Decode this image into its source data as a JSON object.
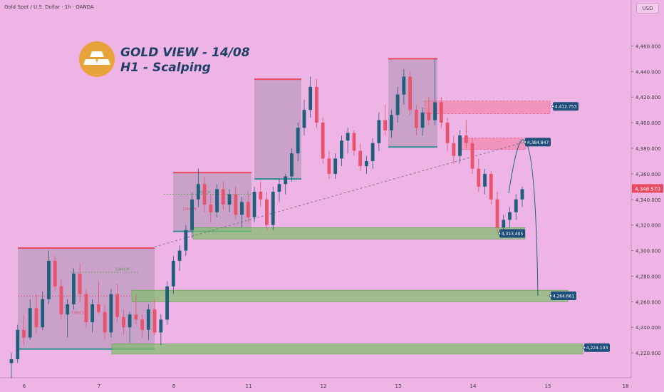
{
  "header": {
    "symbol": "Gold Spot / U.S. Dollar · 1h · OANDA",
    "currency": "USD"
  },
  "overlay": {
    "title": "GOLD VIEW - 14/08",
    "subtitle": "H1 - Scalping",
    "logo_icon": "gold-bars-icon"
  },
  "chart_data": {
    "type": "candlestick",
    "instrument": "Gold Spot / U.S. Dollar",
    "timeframe": "1h",
    "source": "OANDA",
    "ylim": [
      4205,
      4482
    ],
    "y_ticks": [
      "4,460.000",
      "4,440.000",
      "4,420.000",
      "4,400.000",
      "4,380.000",
      "4,360.000",
      "4,340.000",
      "4,320.000",
      "4,300.000",
      "4,280.000",
      "4,260.000",
      "4,240.000",
      "4,220.000"
    ],
    "x_ticks": [
      "6",
      "7",
      "8",
      "11",
      "12",
      "13",
      "14",
      "15",
      "18"
    ],
    "current_price": "4,348.570",
    "price_labels": [
      {
        "value": 4412.753,
        "text": "4,412.753"
      },
      {
        "value": 4384.847,
        "text": "4,384.847"
      },
      {
        "value": 4313.405,
        "text": "4,313.405"
      },
      {
        "value": 4264.661,
        "text": "4,264.661"
      },
      {
        "value": 4224.103,
        "text": "4,224.103"
      }
    ],
    "annotations": [
      "CHoCH",
      "CHoCH",
      "CHoCH",
      "CHoCH"
    ],
    "zones": [
      {
        "kind": "supply",
        "from": 4407,
        "to": 4417
      },
      {
        "kind": "supply",
        "from": 4379,
        "to": 4388
      },
      {
        "kind": "demand",
        "from": 4309,
        "to": 4318
      },
      {
        "kind": "demand",
        "from": 4260,
        "to": 4269
      },
      {
        "kind": "demand",
        "from": 4219,
        "to": 4227
      }
    ],
    "ranges": [
      {
        "high": 4302,
        "low": 4223
      },
      {
        "high": 4361,
        "low": 4315
      },
      {
        "high": 4434,
        "low": 4356
      },
      {
        "high": 4450,
        "low": 4381
      }
    ],
    "candles": [
      [
        4212,
        4220,
        4200,
        4215
      ],
      [
        4215,
        4242,
        4212,
        4238
      ],
      [
        4238,
        4250,
        4226,
        4232
      ],
      [
        4232,
        4262,
        4230,
        4255
      ],
      [
        4255,
        4266,
        4235,
        4240
      ],
      [
        4240,
        4268,
        4238,
        4262
      ],
      [
        4262,
        4300,
        4258,
        4292
      ],
      [
        4292,
        4296,
        4268,
        4272
      ],
      [
        4272,
        4278,
        4246,
        4250
      ],
      [
        4250,
        4262,
        4232,
        4258
      ],
      [
        4258,
        4286,
        4254,
        4282
      ],
      [
        4282,
        4290,
        4260,
        4266
      ],
      [
        4266,
        4270,
        4240,
        4244
      ],
      [
        4244,
        4262,
        4236,
        4258
      ],
      [
        4258,
        4276,
        4250,
        4252
      ],
      [
        4252,
        4258,
        4230,
        4236
      ],
      [
        4236,
        4270,
        4232,
        4266
      ],
      [
        4266,
        4274,
        4244,
        4248
      ],
      [
        4248,
        4254,
        4234,
        4240
      ],
      [
        4240,
        4252,
        4228,
        4250
      ],
      [
        4250,
        4266,
        4242,
        4246
      ],
      [
        4246,
        4250,
        4232,
        4238
      ],
      [
        4238,
        4258,
        4230,
        4254
      ],
      [
        4254,
        4262,
        4234,
        4236
      ],
      [
        4236,
        4250,
        4226,
        4246
      ],
      [
        4246,
        4276,
        4242,
        4272
      ],
      [
        4272,
        4296,
        4266,
        4292
      ],
      [
        4292,
        4304,
        4284,
        4300
      ],
      [
        4300,
        4320,
        4296,
        4316
      ],
      [
        4316,
        4346,
        4310,
        4340
      ],
      [
        4340,
        4364,
        4334,
        4352
      ],
      [
        4352,
        4358,
        4330,
        4336
      ],
      [
        4336,
        4344,
        4322,
        4330
      ],
      [
        4330,
        4352,
        4326,
        4348
      ],
      [
        4348,
        4354,
        4332,
        4336
      ],
      [
        4336,
        4348,
        4330,
        4344
      ],
      [
        4344,
        4350,
        4324,
        4328
      ],
      [
        4328,
        4342,
        4318,
        4338
      ],
      [
        4338,
        4346,
        4322,
        4326
      ],
      [
        4326,
        4350,
        4322,
        4346
      ],
      [
        4346,
        4354,
        4334,
        4340
      ],
      [
        4340,
        4346,
        4316,
        4320
      ],
      [
        4320,
        4350,
        4316,
        4346
      ],
      [
        4346,
        4356,
        4338,
        4352
      ],
      [
        4352,
        4360,
        4344,
        4358
      ],
      [
        4358,
        4380,
        4354,
        4376
      ],
      [
        4376,
        4400,
        4370,
        4396
      ],
      [
        4396,
        4418,
        4390,
        4410
      ],
      [
        4410,
        4436,
        4404,
        4428
      ],
      [
        4428,
        4434,
        4396,
        4400
      ],
      [
        4400,
        4404,
        4368,
        4372
      ],
      [
        4372,
        4378,
        4356,
        4360
      ],
      [
        4360,
        4376,
        4356,
        4372
      ],
      [
        4372,
        4390,
        4366,
        4386
      ],
      [
        4386,
        4396,
        4376,
        4392
      ],
      [
        4392,
        4394,
        4374,
        4378
      ],
      [
        4378,
        4384,
        4362,
        4366
      ],
      [
        4366,
        4374,
        4360,
        4370
      ],
      [
        4370,
        4388,
        4364,
        4384
      ],
      [
        4384,
        4408,
        4378,
        4402
      ],
      [
        4402,
        4414,
        4390,
        4394
      ],
      [
        4394,
        4410,
        4388,
        4406
      ],
      [
        4406,
        4428,
        4400,
        4422
      ],
      [
        4422,
        4442,
        4414,
        4436
      ],
      [
        4436,
        4440,
        4406,
        4410
      ],
      [
        4410,
        4414,
        4390,
        4396
      ],
      [
        4396,
        4412,
        4390,
        4408
      ],
      [
        4408,
        4420,
        4398,
        4402
      ],
      [
        4402,
        4450,
        4398,
        4416
      ],
      [
        4416,
        4420,
        4396,
        4400
      ],
      [
        4400,
        4404,
        4378,
        4384
      ],
      [
        4384,
        4390,
        4368,
        4374
      ],
      [
        4374,
        4394,
        4368,
        4390
      ],
      [
        4390,
        4402,
        4380,
        4384
      ],
      [
        4384,
        4388,
        4360,
        4364
      ],
      [
        4364,
        4372,
        4346,
        4350
      ],
      [
        4350,
        4364,
        4344,
        4360
      ],
      [
        4360,
        4362,
        4336,
        4340
      ],
      [
        4340,
        4346,
        4314,
        4318
      ],
      [
        4318,
        4328,
        4312,
        4324
      ],
      [
        4324,
        4334,
        4318,
        4330
      ],
      [
        4330,
        4344,
        4324,
        4340
      ],
      [
        4340,
        4350,
        4334,
        4348
      ]
    ]
  }
}
